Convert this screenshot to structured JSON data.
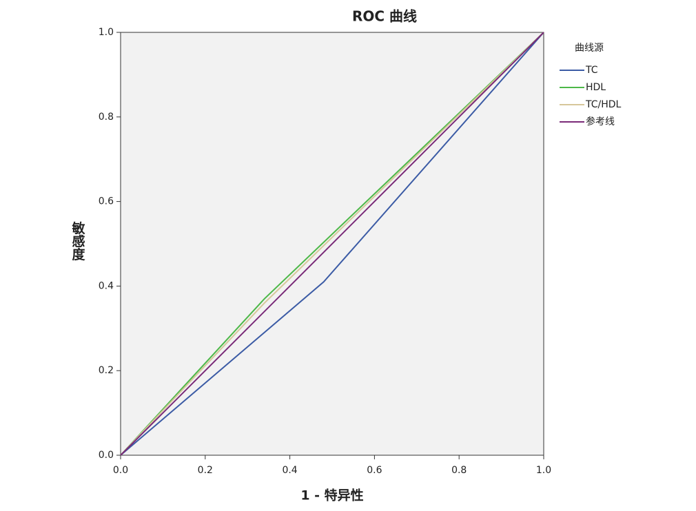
{
  "chart_data": {
    "type": "line",
    "title": "ROC 曲线",
    "x_label": "1 - 特异性",
    "y_label": "敏感度",
    "legend_title": "曲线源",
    "legend": "right",
    "xlim": [
      0,
      1
    ],
    "ylim": [
      0,
      1
    ],
    "xticks": [
      {
        "value": 0,
        "label": "0.0"
      },
      0.2,
      0.4,
      0.6,
      0.8,
      {
        "value": 1,
        "label": "1.0"
      }
    ],
    "yticks": [
      {
        "value": 0,
        "label": "0.0"
      },
      0.2,
      0.4,
      0.6,
      0.8,
      {
        "value": 1,
        "label": "1.0"
      }
    ],
    "plot_background": "#f2f2f2",
    "series": [
      {
        "name": "TC",
        "color": "#3b5ba5",
        "x": [
          0,
          0.48,
          1
        ],
        "values": [
          0,
          0.41,
          1
        ]
      },
      {
        "name": "HDL",
        "color": "#4cb848",
        "x": [
          0,
          0.34,
          1
        ],
        "values": [
          0,
          0.37,
          1
        ]
      },
      {
        "name": "TC/HDL",
        "color": "#d6c79a",
        "x": [
          0,
          0.34,
          1
        ],
        "values": [
          0,
          0.36,
          1
        ]
      },
      {
        "name": "参考线",
        "color": "#7a2a78",
        "x": [
          0,
          1
        ],
        "values": [
          0,
          1
        ]
      }
    ]
  }
}
